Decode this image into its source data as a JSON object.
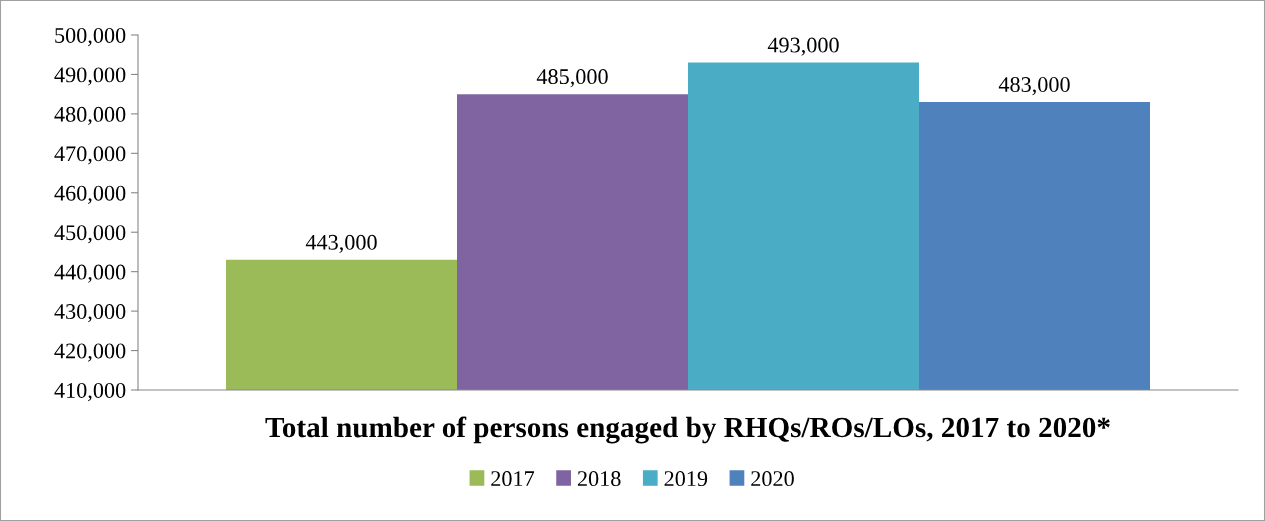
{
  "chart_data": {
    "type": "bar",
    "title": "Total number of persons engaged by RHQs/ROs/LOs, 2017 to 2020*",
    "categories": [
      null
    ],
    "series": [
      {
        "name": "2017",
        "color": "#9bbb59",
        "values": [
          443000
        ],
        "value_labels": [
          "443,000"
        ]
      },
      {
        "name": "2018",
        "color": "#8064a2",
        "values": [
          485000
        ],
        "value_labels": [
          "485,000"
        ]
      },
      {
        "name": "2019",
        "color": "#4bacc6",
        "values": [
          493000
        ],
        "value_labels": [
          "493,000"
        ]
      },
      {
        "name": "2020",
        "color": "#4f81bd",
        "values": [
          483000
        ],
        "value_labels": [
          "483,000"
        ]
      }
    ],
    "ylim": [
      410000,
      500000
    ],
    "yticks": [
      {
        "value": 410000,
        "label": "410,000"
      },
      {
        "value": 420000,
        "label": "420,000"
      },
      {
        "value": 430000,
        "label": "430,000"
      },
      {
        "value": 440000,
        "label": "440,000"
      },
      {
        "value": 450000,
        "label": "450,000"
      },
      {
        "value": 460000,
        "label": "460,000"
      },
      {
        "value": 470000,
        "label": "470,000"
      },
      {
        "value": 480000,
        "label": "480,000"
      },
      {
        "value": 490000,
        "label": "490,000"
      },
      {
        "value": 500000,
        "label": "500,000"
      }
    ],
    "grid": false,
    "legend": "bottom"
  }
}
